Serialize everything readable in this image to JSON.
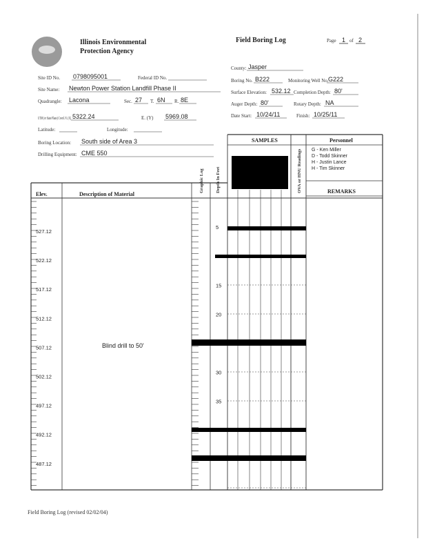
{
  "header": {
    "agency_line1": "Illinois Environmental",
    "agency_line2": "Protection Agency",
    "title": "Field Boring Log",
    "page_label": "Page",
    "page_number": "1",
    "of_label": "of",
    "page_total": "2"
  },
  "fields": {
    "site_id": {
      "label": "Site ID No.",
      "value": "0798095001"
    },
    "federal_id": {
      "label": "Federal ID No."
    },
    "site_name": {
      "label": "Site Name:",
      "value": "Newton Power Station Landfill Phase II"
    },
    "quadrangle": {
      "label": "Quadrangle:",
      "value": "Lacona"
    },
    "section": {
      "label": "Sec.",
      "value": "27"
    },
    "township": {
      "label": "T.",
      "value": "6N"
    },
    "range": {
      "label": "R.",
      "value": "8E"
    },
    "coord_n": {
      "label": "UTM (or State Plane) Coord. N. (X)",
      "value": "5322.24"
    },
    "coord_e": {
      "label": "E. (Y)",
      "value": "5969.08"
    },
    "latitude": {
      "label": "Latitude:"
    },
    "longitude": {
      "label": "Longitude:"
    },
    "boring_location": {
      "label": "Boring Location:",
      "value": "South side of Area 3"
    },
    "drilling_equipment": {
      "label": "Drilling Equipment:",
      "value": "CME 550"
    },
    "county": {
      "label": "County:",
      "value": "Jasper"
    },
    "boring_no": {
      "label": "Boring No.",
      "value": "B222"
    },
    "monitoring_well": {
      "label": "Monitoring Well No.",
      "value": "G222"
    },
    "surface_elevation": {
      "label": "Surface Elevation:",
      "value": "532.12"
    },
    "completion_depth": {
      "label": "Completion Depth:",
      "value": "80'"
    },
    "auger_depth": {
      "label": "Auger Depth:",
      "value": "80'"
    },
    "rotary_depth": {
      "label": "Rotary Depth:",
      "value": "NA"
    },
    "date_start": {
      "label": "Date Start:",
      "value": "10/24/11"
    },
    "finish": {
      "label": "Finish:",
      "value": "10/25/11"
    }
  },
  "table": {
    "elev_header": "Elev.",
    "description_header": "Description of Material",
    "graphic_header": "Graphic Log",
    "depth_header": "Depth In Feet",
    "samples_header": "SAMPLES",
    "ova_header": "OVA or HNU Readings",
    "personnel_header": "Personnel",
    "remarks_header": "REMARKS",
    "personnel": [
      "G - Ken Miller",
      "D - Todd Skinner",
      "H - Justin Lance",
      "H - Tim Skinner"
    ],
    "elevations": [
      527.12,
      522.12,
      517.12,
      512.12,
      507.12,
      502.12,
      497.12,
      492.12,
      487.12
    ],
    "depths": [
      5,
      15,
      20,
      30,
      35
    ],
    "description": "Blind drill to 50'"
  },
  "footer": "Field Boring Log (revised 02/02/04)"
}
